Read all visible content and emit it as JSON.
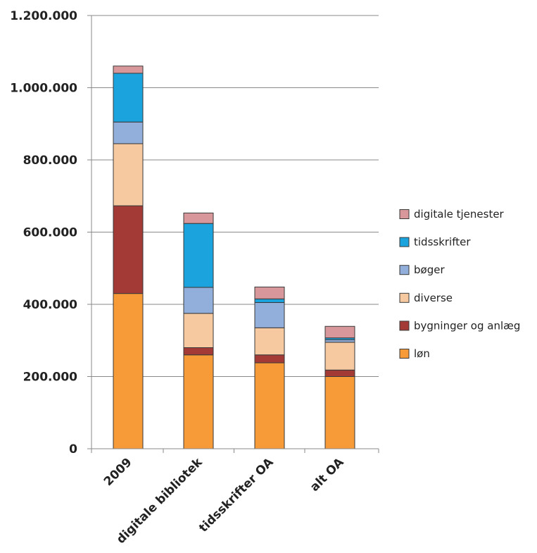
{
  "chart_data": {
    "type": "bar",
    "stacked": true,
    "categories": [
      "2009",
      "digitale bibliotek",
      "tidsskrifter OA",
      "alt OA"
    ],
    "series": [
      {
        "name": "løn",
        "color": "#F79A38",
        "values": [
          430000,
          260000,
          238000,
          200000
        ]
      },
      {
        "name": "bygninger og anlæg",
        "color": "#A33A36",
        "values": [
          243000,
          20000,
          22000,
          18000
        ]
      },
      {
        "name": "diverse",
        "color": "#F6C9A0",
        "values": [
          172000,
          95000,
          75000,
          77000
        ]
      },
      {
        "name": "bøger",
        "color": "#92AEDA",
        "values": [
          60000,
          72000,
          70000,
          7000
        ]
      },
      {
        "name": "tidsskrifter",
        "color": "#1BA3DE",
        "values": [
          135000,
          177000,
          10000,
          5000
        ]
      },
      {
        "name": "digitale tjenester",
        "color": "#D8979A",
        "values": [
          20000,
          29000,
          33000,
          32000
        ]
      }
    ],
    "ylim": [
      0,
      1200000
    ],
    "y_ticks": [
      0,
      200000,
      400000,
      600000,
      800000,
      1000000,
      1200000
    ],
    "y_tick_labels": [
      "0",
      "200.000",
      "400.000",
      "600.000",
      "800.000",
      "1.000.000",
      "1.200.000"
    ],
    "grid": true,
    "legend_position": "right",
    "legend_order": [
      "digitale tjenester",
      "tidsskrifter",
      "bøger",
      "diverse",
      "bygninger og anlæg",
      "løn"
    ]
  }
}
